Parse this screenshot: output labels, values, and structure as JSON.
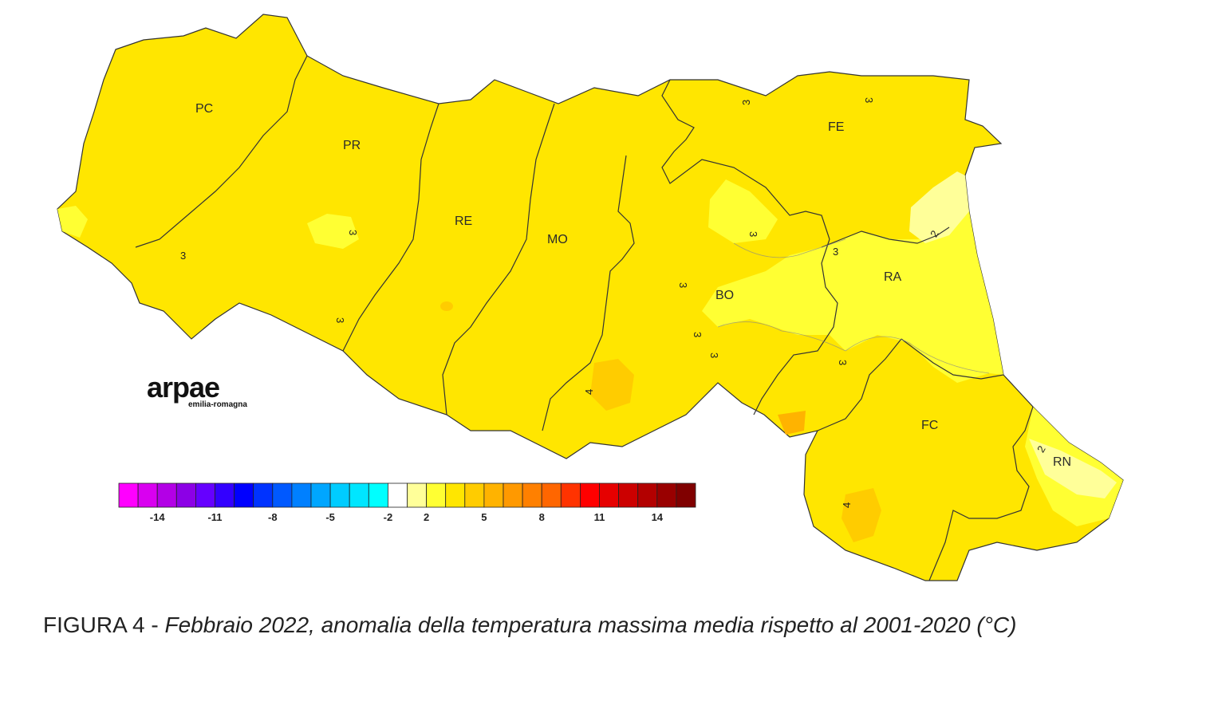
{
  "map": {
    "provinces": [
      {
        "code": "PC"
      },
      {
        "code": "PR"
      },
      {
        "code": "RE"
      },
      {
        "code": "MO"
      },
      {
        "code": "BO"
      },
      {
        "code": "FE"
      },
      {
        "code": "RA"
      },
      {
        "code": "FC"
      },
      {
        "code": "RN"
      }
    ],
    "contour_labels": [
      "3",
      "3",
      "3",
      "3",
      "3",
      "3",
      "3",
      "3",
      "3",
      "3",
      "3",
      "4",
      "4",
      "2",
      "2"
    ],
    "fill_colors": {
      "anomaly_2_3": "#ffff33",
      "anomaly_3_4": "#ffe600",
      "anomaly_4_5": "#ffcc00",
      "anomaly_1_2": "#ffff99"
    }
  },
  "legend": {
    "colors": [
      "#ff00ff",
      "#d900f0",
      "#b300e6",
      "#8c00e6",
      "#6600ff",
      "#3300ff",
      "#0000ff",
      "#0033ff",
      "#0059ff",
      "#0080ff",
      "#00a6ff",
      "#00ccff",
      "#00e6ff",
      "#00ffff",
      "#ffffff",
      "#ffff99",
      "#ffff33",
      "#ffe600",
      "#ffcc00",
      "#ffb300",
      "#ff9900",
      "#ff8000",
      "#ff6600",
      "#ff3300",
      "#ff0000",
      "#e60000",
      "#cc0000",
      "#b30000",
      "#990000",
      "#800000"
    ],
    "tick_labels": [
      "-14",
      "-11",
      "-8",
      "-5",
      "-2",
      "2",
      "5",
      "8",
      "11",
      "14"
    ]
  },
  "logo": {
    "name": "arpae",
    "subtitle": "emilia-romagna"
  },
  "caption": {
    "prefix": "FIGURA 4 - ",
    "text": "Febbraio 2022, anomalia della temperatura massima media rispetto al 2001-2020 (°C)"
  }
}
